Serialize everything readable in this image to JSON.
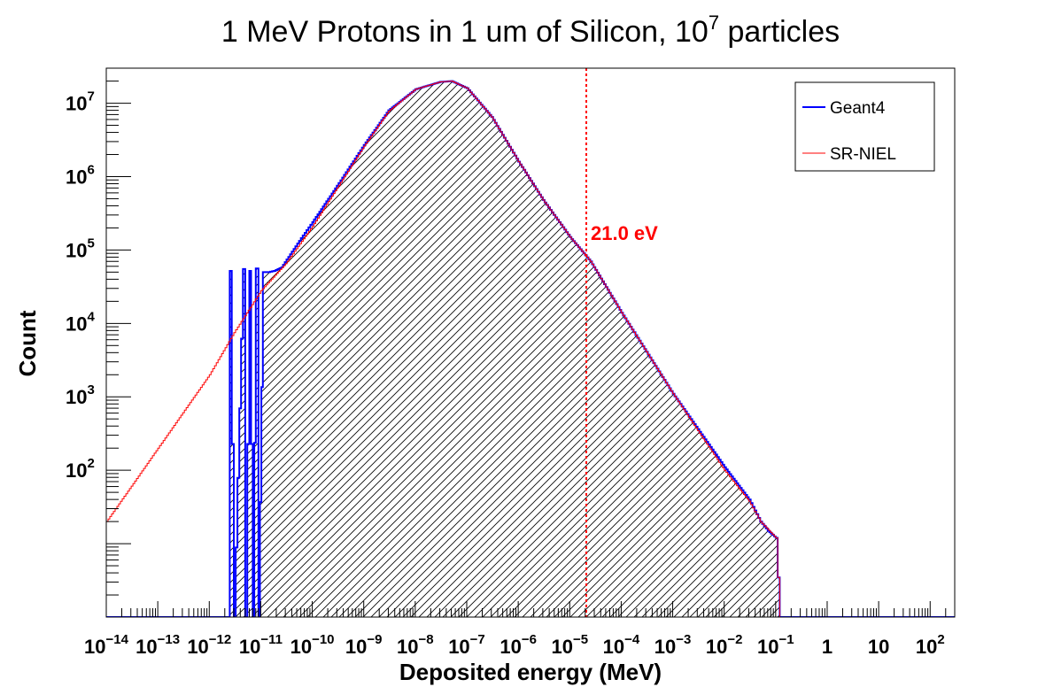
{
  "chart_data": {
    "type": "histogram",
    "title": {
      "main": "1 MeV Protons in 1 um of Silicon, 10",
      "sup": "7",
      "tail": " particles"
    },
    "xlabel": "Deposited energy (MeV)",
    "ylabel": "Count",
    "x_scale": "log",
    "y_scale": "log",
    "xlim": [
      1e-14,
      300
    ],
    "ylim": [
      1,
      30000000
    ],
    "x_ticks": [
      {
        "base": "10",
        "exp": "−14",
        "value": 1e-14
      },
      {
        "base": "10",
        "exp": "−13",
        "value": 1e-13
      },
      {
        "base": "10",
        "exp": "−12",
        "value": 1e-12
      },
      {
        "base": "10",
        "exp": "−11",
        "value": 1e-11
      },
      {
        "base": "10",
        "exp": "−10",
        "value": 1e-10
      },
      {
        "base": "10",
        "exp": "−9",
        "value": 1e-09
      },
      {
        "base": "10",
        "exp": "−8",
        "value": 1e-08
      },
      {
        "base": "10",
        "exp": "−7",
        "value": 1e-07
      },
      {
        "base": "10",
        "exp": "−6",
        "value": 1e-06
      },
      {
        "base": "10",
        "exp": "−5",
        "value": 1e-05
      },
      {
        "base": "10",
        "exp": "−4",
        "value": 0.0001
      },
      {
        "base": "10",
        "exp": "−3",
        "value": 0.001
      },
      {
        "base": "10",
        "exp": "−2",
        "value": 0.01
      },
      {
        "base": "10",
        "exp": "−1",
        "value": 0.1
      },
      {
        "base": "1",
        "exp": "",
        "value": 1
      },
      {
        "base": "10",
        "exp": "",
        "value": 10
      },
      {
        "base": "10",
        "exp": "2",
        "value": 100
      }
    ],
    "y_ticks": [
      {
        "base": "10",
        "exp": "2",
        "value": 100
      },
      {
        "base": "10",
        "exp": "3",
        "value": 1000
      },
      {
        "base": "10",
        "exp": "4",
        "value": 10000
      },
      {
        "base": "10",
        "exp": "5",
        "value": 100000
      },
      {
        "base": "10",
        "exp": "6",
        "value": 1000000
      },
      {
        "base": "10",
        "exp": "7",
        "value": 10000000
      }
    ],
    "series": [
      {
        "name": "Geant4",
        "color": "#0000ff",
        "style": "hatched-step",
        "x": [
          1e-14,
          2.5e-12,
          2.5e-12,
          3e-12,
          4.5e-12,
          5e-12,
          6e-12,
          7e-12,
          8e-12,
          9e-12,
          1.1e-11,
          1.4e-11,
          1.8e-11,
          2.5e-11,
          4e-11,
          6e-11,
          1e-10,
          3e-10,
          1e-09,
          3e-09,
          1e-08,
          3e-08,
          5e-08,
          1e-07,
          3e-07,
          1e-06,
          3e-06,
          1e-05,
          2.5e-05,
          0.0001,
          0.001,
          0.01,
          0.03,
          0.05,
          0.07,
          0.1,
          0.12,
          300
        ],
        "y": [
          1,
          1,
          52000,
          1,
          55000,
          1,
          52000,
          1,
          56000,
          1,
          50000,
          50000,
          52000,
          58000,
          95000,
          145000,
          240000,
          750000,
          2700000,
          8000000,
          15500000,
          19500000,
          20000000,
          16000000,
          6500000,
          1600000,
          480000,
          150000,
          70000,
          14000,
          1100,
          110,
          40,
          20,
          15,
          12,
          1,
          1
        ]
      },
      {
        "name": "SR-NIEL",
        "color": "#ff0000",
        "style": "step",
        "x": [
          1e-14,
          1e-13,
          1e-12,
          3e-12,
          1e-11,
          3e-11,
          1e-10,
          3e-10,
          1e-09,
          3e-09,
          1e-08,
          3e-08,
          5e-08,
          1e-07,
          3e-07,
          1e-06,
          3e-06,
          1e-05,
          2.5e-05,
          0.0001,
          0.001,
          0.01,
          0.03,
          0.05,
          0.1,
          0.12,
          300
        ],
        "y": [
          20,
          200,
          2000,
          7500,
          28000,
          65000,
          210000,
          700000,
          2600000,
          7800000,
          15500000,
          19500000,
          20000000,
          16000000,
          6500000,
          1600000,
          480000,
          150000,
          70000,
          14000,
          1100,
          100,
          38,
          20,
          12,
          1,
          1
        ]
      }
    ],
    "annotations": [
      {
        "text": "21.0 eV",
        "x": 2.1e-05,
        "color": "#ff0000",
        "style": "dotted-vertical-line"
      }
    ],
    "legend": {
      "placement": "top-right",
      "entries": [
        "Geant4",
        "SR-NIEL"
      ]
    },
    "grid": false
  }
}
